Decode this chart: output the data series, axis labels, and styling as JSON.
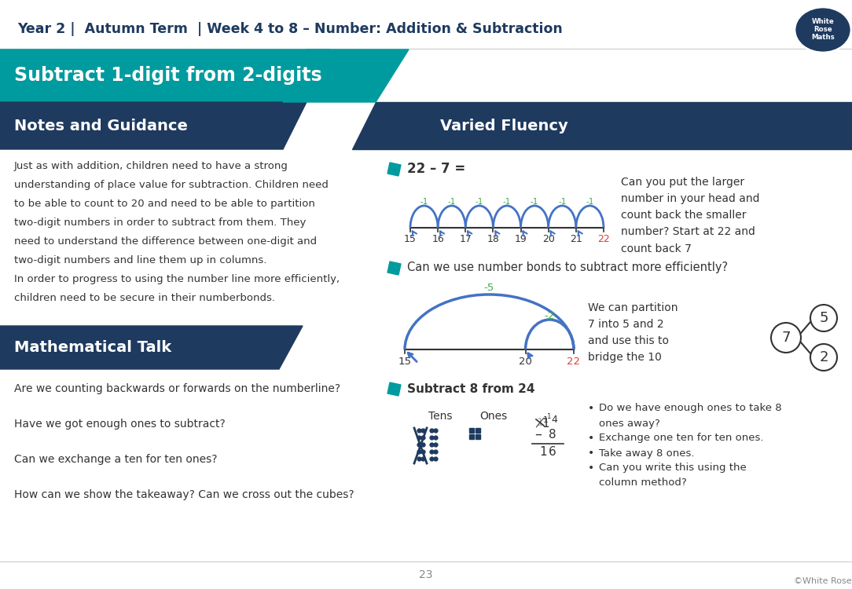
{
  "title_header": "Year 2 |  Autumn Term  | Week 4 to 8 – Number: Addition & Subtraction",
  "main_title": "Subtract 1-digit from 2-digits",
  "section_left": "Notes and Guidance",
  "section_right": "Varied Fluency",
  "notes_text_lines": [
    "Just as with addition, children need to have a strong",
    "understanding of place value for subtraction. Children need",
    "to be able to count to 20 and need to be able to partition",
    "two-digit numbers in order to subtract from them. They",
    "need to understand the difference between one-digit and",
    "two-digit numbers and line them up in columns.",
    "In order to progress to using the number line more efficiently,",
    "children need to be secure in their numberbonds."
  ],
  "math_talk_title": "Mathematical Talk",
  "math_talk_items": [
    "Are we counting backwards or forwards on the numberline?",
    "Have we got enough ones to subtract?",
    "Can we exchange a ten for ten ones?",
    "How can we show the takeaway? Can we cross out the cubes?"
  ],
  "fluency_q1": "22 – 7 =",
  "fluency_q1_desc": "Can you put the larger\nnumber in your head and\ncount back the smaller\nnumber? Start at 22 and\ncount back 7",
  "numberline1_nums": [
    15,
    16,
    17,
    18,
    19,
    20,
    21,
    22
  ],
  "fluency_q2": "Can we use number bonds to subtract more efficiently?",
  "fluency_q2_desc": "We can partition\n7 into 5 and 2\nand use this to\nbridge the 10",
  "fluency_q3": "Subtract 8 from 24",
  "fluency_q3_bullets": [
    "•  Do we have enough ones to take 8",
    "    ones away?",
    "•  Exchange one ten for ten ones.",
    "•  Take away 8 ones.",
    "•  Can you write this using the",
    "    column method?"
  ],
  "page_num": "23",
  "copyright": "©White Rose Maths",
  "bg_color": "#ffffff",
  "teal_color": "#009B9E",
  "navy_color": "#1E3A5F",
  "green_color": "#3daa4c",
  "red_color": "#e53935",
  "blue_arc_color": "#4472C4",
  "text_color": "#333333"
}
